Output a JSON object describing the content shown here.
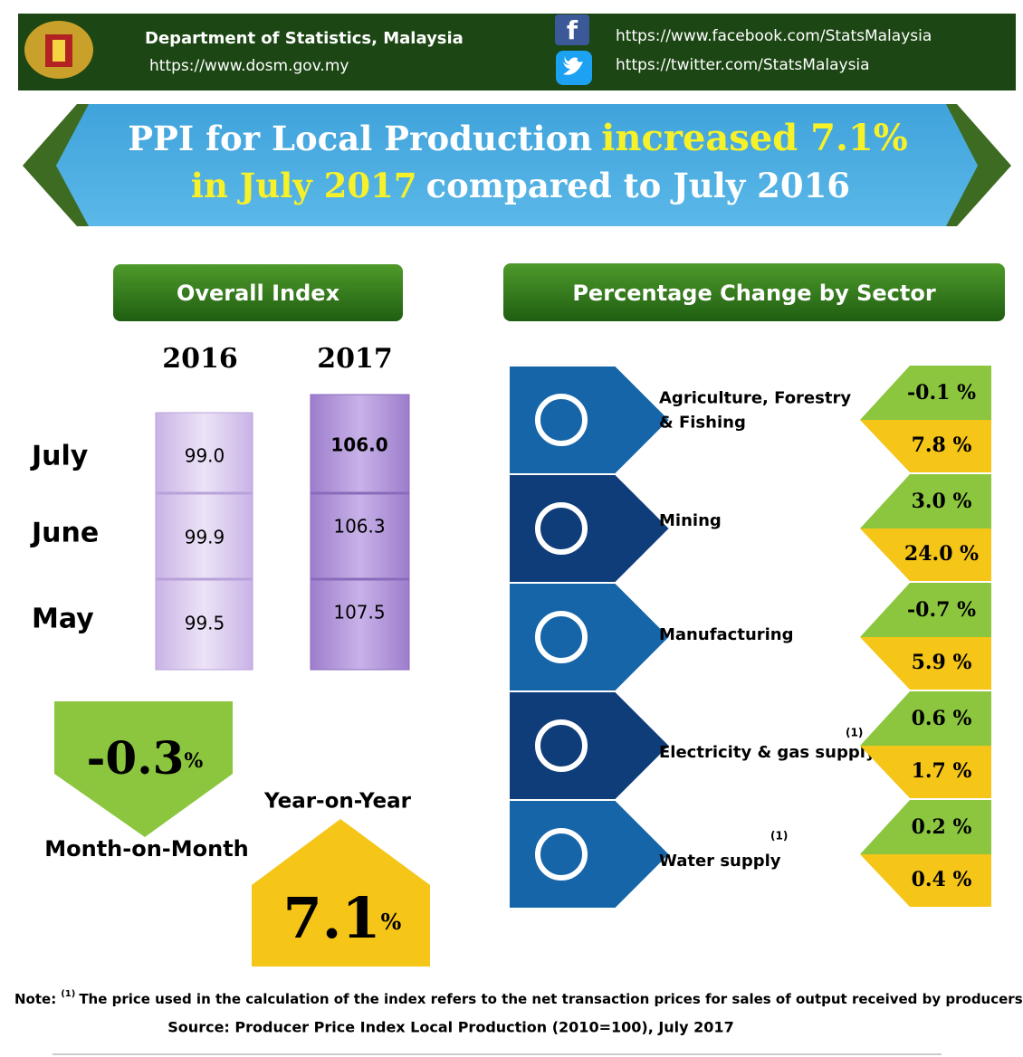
{
  "header": {
    "org": "Department of Statistics, Malaysia",
    "website": "https://www.dosm.gov.my",
    "facebook": "https://www.facebook.com/StatsMalaysia",
    "twitter": "https://twitter.com/StatsMalaysia"
  },
  "banner": {
    "part1": "PPI for Local Production",
    "part2": "increased 7.1%",
    "part3": "in July 2017",
    "part4": "compared to July 2016"
  },
  "overall": {
    "title": "Overall Index",
    "years": [
      "2016",
      "2017"
    ],
    "rows": [
      {
        "month": "July",
        "values": [
          "99.0",
          "106.0"
        ]
      },
      {
        "month": "June",
        "values": [
          "99.9",
          "106.3"
        ]
      },
      {
        "month": "May",
        "values": [
          "99.5",
          "107.5"
        ]
      }
    ]
  },
  "mom": {
    "value": "-0.3",
    "unit": "%",
    "label": "Month-on-Month"
  },
  "yoy": {
    "value": "7.1",
    "unit": "%",
    "label": "Year-on-Year"
  },
  "sectors": {
    "title": "Percentage Change by Sector",
    "items": [
      {
        "name": [
          "Agriculture, Forestry",
          "& Fishing"
        ],
        "mom": "-0.1 %",
        "yoy": "7.8 %"
      },
      {
        "name": [
          "Mining"
        ],
        "mom": "3.0 %",
        "yoy": "24.0 %"
      },
      {
        "name": [
          "Manufacturing"
        ],
        "mom": "-0.7 %",
        "yoy": "5.9 %"
      },
      {
        "name": [
          "Electricity & gas supply"
        ],
        "sup": "(1)",
        "mom": "0.6 %",
        "yoy": "1.7 %"
      },
      {
        "name": [
          "Water supply"
        ],
        "sup": "(1)",
        "mom": "0.2 %",
        "yoy": "0.4 %"
      }
    ]
  },
  "note": {
    "prefix": "Note:",
    "sup": "(1)",
    "text": "The price used in the calculation of the index refers to the net transaction prices for sales of output received by producers"
  },
  "source": "Source: Producer Price Index Local Production (2010=100), July 2017"
}
